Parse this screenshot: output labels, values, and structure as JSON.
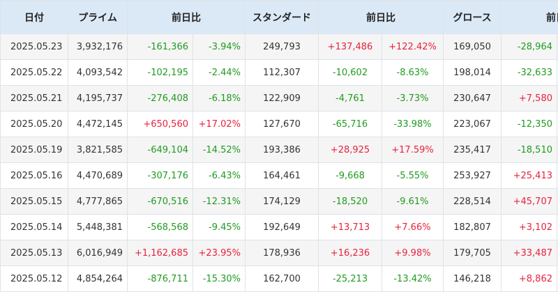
{
  "colors": {
    "header_bg": "#dbe9f7",
    "positive": "#e8213d",
    "negative": "#1f9b1f",
    "row_alt": "#f5f5f5"
  },
  "headers": [
    "日付",
    "プライム",
    "前日比",
    "スタンダード",
    "前日比",
    "グロース",
    "前日比"
  ],
  "rows": [
    {
      "date": "2025.05.23",
      "prime": "3,932,176",
      "prime_diff": "-161,366",
      "prime_pct": "-3.94%",
      "std": "249,793",
      "std_diff": "+137,486",
      "std_pct": "+122.42%",
      "growth": "169,050",
      "growth_diff": "-28,964"
    },
    {
      "date": "2025.05.22",
      "prime": "4,093,542",
      "prime_diff": "-102,195",
      "prime_pct": "-2.44%",
      "std": "112,307",
      "std_diff": "-10,602",
      "std_pct": "-8.63%",
      "growth": "198,014",
      "growth_diff": "-32,633"
    },
    {
      "date": "2025.05.21",
      "prime": "4,195,737",
      "prime_diff": "-276,408",
      "prime_pct": "-6.18%",
      "std": "122,909",
      "std_diff": "-4,761",
      "std_pct": "-3.73%",
      "growth": "230,647",
      "growth_diff": "+7,580"
    },
    {
      "date": "2025.05.20",
      "prime": "4,472,145",
      "prime_diff": "+650,560",
      "prime_pct": "+17.02%",
      "std": "127,670",
      "std_diff": "-65,716",
      "std_pct": "-33.98%",
      "growth": "223,067",
      "growth_diff": "-12,350"
    },
    {
      "date": "2025.05.19",
      "prime": "3,821,585",
      "prime_diff": "-649,104",
      "prime_pct": "-14.52%",
      "std": "193,386",
      "std_diff": "+28,925",
      "std_pct": "+17.59%",
      "growth": "235,417",
      "growth_diff": "-18,510"
    },
    {
      "date": "2025.05.16",
      "prime": "4,470,689",
      "prime_diff": "-307,176",
      "prime_pct": "-6.43%",
      "std": "164,461",
      "std_diff": "-9,668",
      "std_pct": "-5.55%",
      "growth": "253,927",
      "growth_diff": "+25,413"
    },
    {
      "date": "2025.05.15",
      "prime": "4,777,865",
      "prime_diff": "-670,516",
      "prime_pct": "-12.31%",
      "std": "174,129",
      "std_diff": "-18,520",
      "std_pct": "-9.61%",
      "growth": "228,514",
      "growth_diff": "+45,707"
    },
    {
      "date": "2025.05.14",
      "prime": "5,448,381",
      "prime_diff": "-568,568",
      "prime_pct": "-9.45%",
      "std": "192,649",
      "std_diff": "+13,713",
      "std_pct": "+7.66%",
      "growth": "182,807",
      "growth_diff": "+3,102"
    },
    {
      "date": "2025.05.13",
      "prime": "6,016,949",
      "prime_diff": "+1,162,685",
      "prime_pct": "+23.95%",
      "std": "178,936",
      "std_diff": "+16,236",
      "std_pct": "+9.98%",
      "growth": "179,705",
      "growth_diff": "+33,487"
    },
    {
      "date": "2025.05.12",
      "prime": "4,854,264",
      "prime_diff": "-876,711",
      "prime_pct": "-15.30%",
      "std": "162,700",
      "std_diff": "-25,213",
      "std_pct": "-13.42%",
      "growth": "146,218",
      "growth_diff": "+8,862"
    }
  ]
}
